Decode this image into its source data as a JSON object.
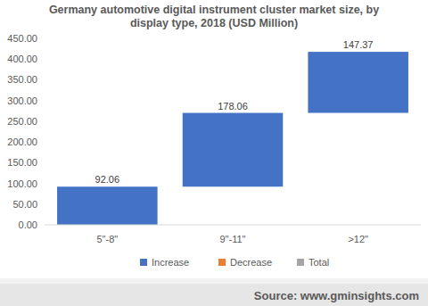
{
  "chart_data": {
    "type": "waterfall",
    "title": "Germany automotive digital instrument cluster market size, by display type, 2018 (USD Million)",
    "categories": [
      "5\"-8\"",
      "9\"-11\"",
      ">12\""
    ],
    "series": [
      {
        "name": "Increase",
        "color": "#4472c4",
        "values": [
          92.06,
          178.06,
          147.37
        ]
      },
      {
        "name": "Decrease",
        "color": "#ed7d31",
        "values": [
          null,
          null,
          null
        ]
      },
      {
        "name": "Total",
        "color": "#a5a5a5",
        "values": [
          null,
          null,
          null
        ]
      }
    ],
    "ylim": [
      0,
      450
    ],
    "yticks": [
      {
        "value": 0,
        "label": "0.00"
      },
      {
        "value": 50,
        "label": "50.00"
      },
      {
        "value": 100,
        "label": "100.00"
      },
      {
        "value": 150,
        "label": "150.00"
      },
      {
        "value": 200,
        "label": "200.00"
      },
      {
        "value": 250,
        "label": "250.00"
      },
      {
        "value": 300,
        "label": "300.00"
      },
      {
        "value": 350,
        "label": "350.00"
      },
      {
        "value": 400,
        "label": "400.00"
      },
      {
        "value": 450,
        "label": "450.00"
      }
    ],
    "grid": false,
    "data_labels": true,
    "legend": "bottom",
    "source": "Source: www.gminsights.com"
  }
}
